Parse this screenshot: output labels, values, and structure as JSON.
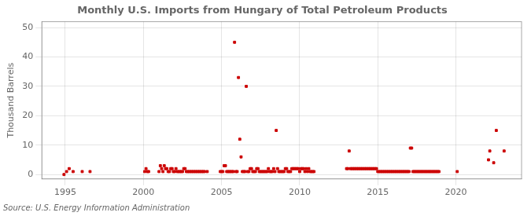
{
  "chart_data": {
    "type": "scatter",
    "title": "Monthly U.S. Imports from Hungary of Total Petroleum Products",
    "y_label": "Thousand Barrels",
    "annotation": "Source: U.S. Energy Information Administration",
    "color": "#cc0000",
    "marker": "square",
    "grid": true,
    "xlim": [
      1993.5,
      2024.2
    ],
    "ylim": [
      -1.5,
      52
    ],
    "xticks": [
      1995,
      2000,
      2005,
      2010,
      2015,
      2020
    ],
    "yticks": [
      0,
      10,
      20,
      30,
      40,
      50
    ],
    "x": [
      1994.917,
      1995.083,
      1995.25,
      1995.5,
      1996.083,
      1996.583,
      2000.083,
      2000.167,
      2000.25,
      2000.333,
      2001.0,
      2001.083,
      2001.167,
      2001.25,
      2001.333,
      2001.417,
      2001.5,
      2001.583,
      2001.667,
      2001.75,
      2001.833,
      2001.917,
      2002.0,
      2002.083,
      2002.167,
      2002.25,
      2002.333,
      2002.417,
      2002.5,
      2002.583,
      2002.667,
      2002.75,
      2002.833,
      2002.917,
      2003.0,
      2003.083,
      2003.167,
      2003.25,
      2003.333,
      2003.417,
      2003.5,
      2003.583,
      2003.667,
      2003.75,
      2003.833,
      2003.917,
      2004.083,
      2004.917,
      2005.0,
      2005.083,
      2005.167,
      2005.25,
      2005.333,
      2005.417,
      2005.5,
      2005.583,
      2005.667,
      2005.75,
      2005.833,
      2005.917,
      2006.0,
      2006.083,
      2006.167,
      2006.25,
      2006.333,
      2006.417,
      2006.5,
      2006.583,
      2006.667,
      2006.75,
      2006.833,
      2006.917,
      2007.0,
      2007.083,
      2007.167,
      2007.25,
      2007.333,
      2007.417,
      2007.5,
      2007.583,
      2007.667,
      2007.75,
      2007.833,
      2007.917,
      2008.0,
      2008.083,
      2008.167,
      2008.25,
      2008.333,
      2008.417,
      2008.5,
      2008.583,
      2008.667,
      2008.75,
      2008.833,
      2008.917,
      2009.0,
      2009.083,
      2009.167,
      2009.25,
      2009.333,
      2009.417,
      2009.5,
      2009.583,
      2009.667,
      2009.75,
      2009.833,
      2009.917,
      2010.0,
      2010.083,
      2010.167,
      2010.25,
      2010.333,
      2010.417,
      2010.5,
      2010.583,
      2010.667,
      2010.75,
      2010.833,
      2010.917,
      2013.0,
      2013.083,
      2013.167,
      2013.25,
      2013.333,
      2013.417,
      2013.5,
      2013.583,
      2013.667,
      2013.75,
      2013.833,
      2013.917,
      2014.0,
      2014.083,
      2014.167,
      2014.25,
      2014.333,
      2014.417,
      2014.5,
      2014.583,
      2014.667,
      2014.75,
      2014.833,
      2014.917,
      2015.0,
      2015.083,
      2015.167,
      2015.25,
      2015.333,
      2015.417,
      2015.5,
      2015.583,
      2015.667,
      2015.75,
      2015.833,
      2015.917,
      2016.0,
      2016.083,
      2016.167,
      2016.25,
      2016.333,
      2016.417,
      2016.5,
      2016.583,
      2016.667,
      2016.75,
      2016.833,
      2016.917,
      2017.0,
      2017.083,
      2017.167,
      2017.25,
      2017.333,
      2017.417,
      2017.5,
      2017.583,
      2017.667,
      2017.75,
      2017.833,
      2017.917,
      2018.0,
      2018.083,
      2018.167,
      2018.25,
      2018.333,
      2018.417,
      2018.5,
      2018.583,
      2018.667,
      2018.75,
      2018.833,
      2018.917,
      2020.083,
      2022.083,
      2022.167,
      2022.417,
      2022.583,
      2023.083
    ],
    "values": [
      0,
      1,
      2,
      1,
      1,
      1,
      1,
      2,
      1,
      1,
      1,
      3,
      2,
      1,
      3,
      2,
      2,
      1,
      1,
      2,
      2,
      1,
      1,
      2,
      1,
      1,
      1,
      1,
      1,
      2,
      2,
      1,
      1,
      1,
      1,
      1,
      1,
      1,
      1,
      1,
      1,
      1,
      1,
      1,
      1,
      1,
      1,
      1,
      1,
      1,
      3,
      3,
      1,
      1,
      1,
      1,
      1,
      1,
      45,
      1,
      1,
      33,
      12,
      6,
      1,
      1,
      1,
      30,
      1,
      1,
      2,
      2,
      1,
      1,
      1,
      2,
      2,
      1,
      1,
      1,
      1,
      1,
      1,
      1,
      2,
      1,
      1,
      1,
      2,
      1,
      15,
      2,
      1,
      1,
      1,
      1,
      1,
      2,
      2,
      1,
      1,
      1,
      2,
      2,
      2,
      2,
      2,
      2,
      1,
      2,
      2,
      2,
      1,
      2,
      1,
      2,
      1,
      1,
      1,
      1,
      2,
      2,
      8,
      2,
      2,
      2,
      2,
      2,
      2,
      2,
      2,
      2,
      2,
      2,
      2,
      2,
      2,
      2,
      2,
      2,
      2,
      2,
      2,
      2,
      1,
      1,
      1,
      1,
      1,
      1,
      1,
      1,
      1,
      1,
      1,
      1,
      1,
      1,
      1,
      1,
      1,
      1,
      1,
      1,
      1,
      1,
      1,
      1,
      1,
      9,
      9,
      1,
      1,
      1,
      1,
      1,
      1,
      1,
      1,
      1,
      1,
      1,
      1,
      1,
      1,
      1,
      1,
      1,
      1,
      1,
      1,
      1,
      1,
      5,
      8,
      4,
      15,
      8
    ]
  }
}
